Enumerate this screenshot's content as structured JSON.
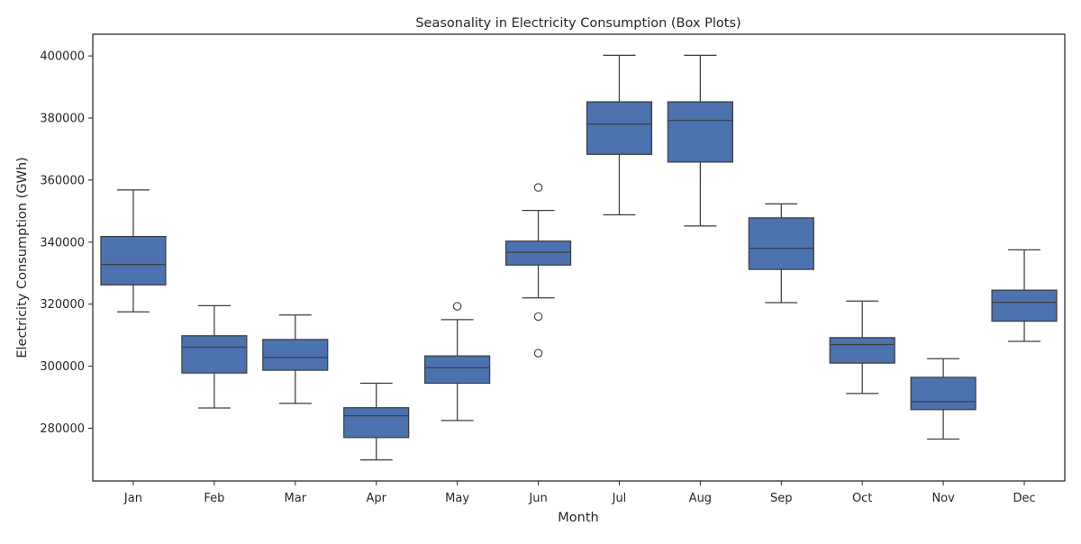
{
  "chart_data": {
    "type": "box",
    "title": "Seasonality in Electricity Consumption (Box Plots)",
    "xlabel": "Month",
    "ylabel": "Electricity Consumption (GWh)",
    "ylim": [
      263000,
      407000
    ],
    "yticks": [
      280000,
      300000,
      320000,
      340000,
      360000,
      380000,
      400000
    ],
    "grid": false,
    "legend": "none",
    "box_color": "#4c72b0",
    "line_color": "#3d3d3d",
    "categories": [
      "Jan",
      "Feb",
      "Mar",
      "Apr",
      "May",
      "Jun",
      "Jul",
      "Aug",
      "Sep",
      "Oct",
      "Nov",
      "Dec"
    ],
    "boxes": [
      {
        "whisker_low": 317500,
        "q1": 326200,
        "median": 332800,
        "q3": 341800,
        "whisker_high": 356800,
        "outliers": []
      },
      {
        "whisker_low": 286500,
        "q1": 297800,
        "median": 306100,
        "q3": 309800,
        "whisker_high": 319500,
        "outliers": []
      },
      {
        "whisker_low": 288000,
        "q1": 298700,
        "median": 302800,
        "q3": 308600,
        "whisker_high": 316500,
        "outliers": []
      },
      {
        "whisker_low": 269800,
        "q1": 277000,
        "median": 284000,
        "q3": 286600,
        "whisker_high": 294500,
        "outliers": []
      },
      {
        "whisker_low": 282500,
        "q1": 294500,
        "median": 299500,
        "q3": 303300,
        "whisker_high": 315000,
        "outliers": [
          319300
        ]
      },
      {
        "whisker_low": 322000,
        "q1": 332600,
        "median": 336700,
        "q3": 340300,
        "whisker_high": 350200,
        "outliers": [
          357600,
          316000,
          304200
        ]
      },
      {
        "whisker_low": 348800,
        "q1": 368300,
        "median": 378000,
        "q3": 385200,
        "whisker_high": 400200,
        "outliers": []
      },
      {
        "whisker_low": 345200,
        "q1": 365800,
        "median": 379200,
        "q3": 385200,
        "whisker_high": 400200,
        "outliers": []
      },
      {
        "whisker_low": 320500,
        "q1": 331200,
        "median": 338000,
        "q3": 347800,
        "whisker_high": 352300,
        "outliers": []
      },
      {
        "whisker_low": 291200,
        "q1": 301000,
        "median": 307000,
        "q3": 309200,
        "whisker_high": 321000,
        "outliers": []
      },
      {
        "whisker_low": 276500,
        "q1": 286000,
        "median": 288600,
        "q3": 296400,
        "whisker_high": 302400,
        "outliers": []
      },
      {
        "whisker_low": 308000,
        "q1": 314500,
        "median": 320600,
        "q3": 324500,
        "whisker_high": 337500,
        "outliers": []
      }
    ]
  }
}
